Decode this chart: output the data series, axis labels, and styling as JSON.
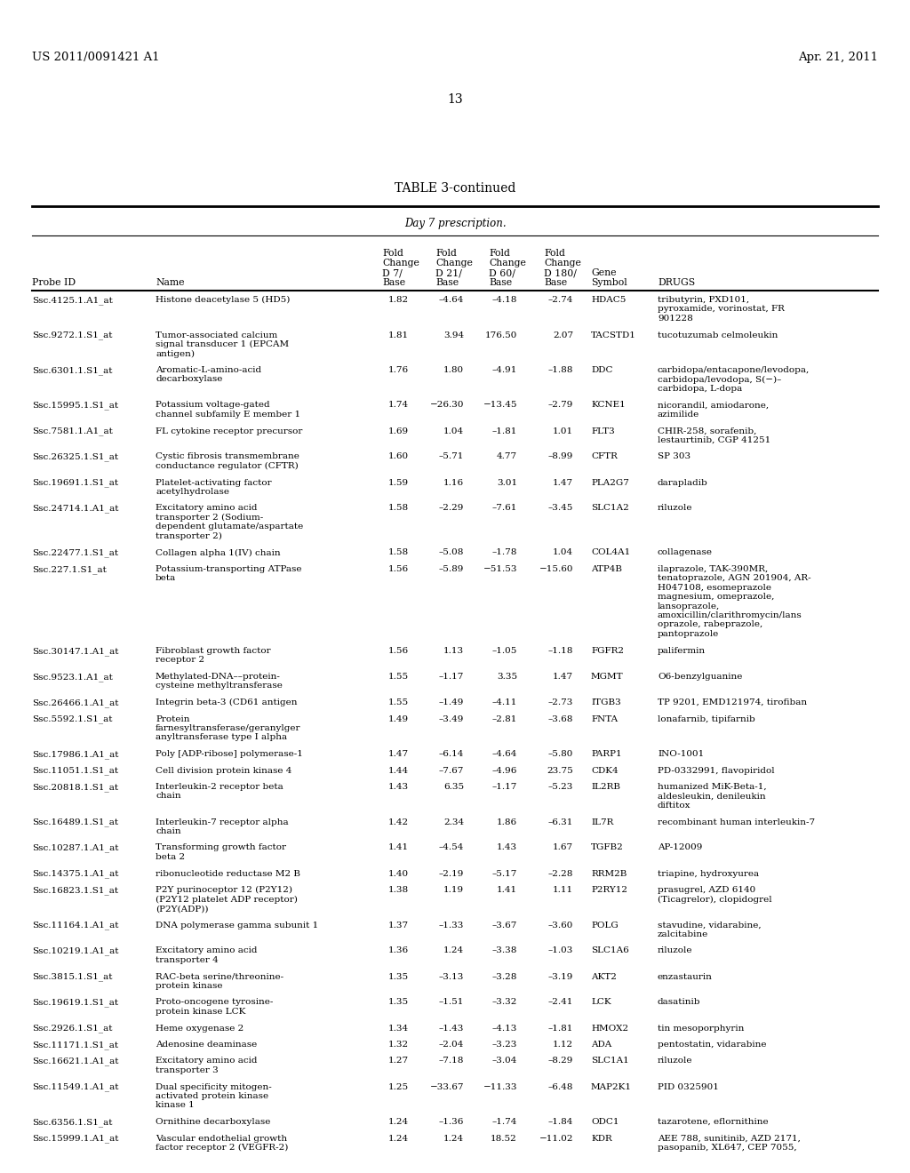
{
  "header_left": "US 2011/0091421 A1",
  "header_right": "Apr. 21, 2011",
  "page_number": "13",
  "table_title": "TABLE 3-continued",
  "subtitle": "Day 7 prescription.",
  "rows": [
    {
      "probe": "Ssc.4125.1.A1_at",
      "name": "Histone deacetylase 5 (HD5)",
      "fc7": "1.82",
      "fc21": "–4.64",
      "fc60": "–4.18",
      "fc180": "–2.74",
      "gene": "HDAC5",
      "drugs": "tributyrin, PXD101,\npyroxamide, vorinostat, FR\n901228"
    },
    {
      "probe": "Ssc.9272.1.S1_at",
      "name": "Tumor-associated calcium\nsignal transducer 1 (EPCAM\nantigen)",
      "fc7": "1.81",
      "fc21": "3.94",
      "fc60": "176.50",
      "fc180": "2.07",
      "gene": "TACSTD1",
      "drugs": "tucotuzumab celmoleukin"
    },
    {
      "probe": "Ssc.6301.1.S1_at",
      "name": "Aromatic-L-amino-acid\ndecarboxylase",
      "fc7": "1.76",
      "fc21": "1.80",
      "fc60": "–4.91",
      "fc180": "–1.88",
      "gene": "DDC",
      "drugs": "carbidopa/entacapone/levodopa,\ncarbidopa/levodopa, S(−)–\ncarbidopa, L-dopa"
    },
    {
      "probe": "Ssc.15995.1.S1_at",
      "name": "Potassium voltage-gated\nchannel subfamily E member 1",
      "fc7": "1.74",
      "fc21": "−26.30",
      "fc60": "−13.45",
      "fc180": "–2.79",
      "gene": "KCNE1",
      "drugs": "nicorandil, amiodarone,\nazimilide"
    },
    {
      "probe": "Ssc.7581.1.A1_at",
      "name": "FL cytokine receptor precursor",
      "fc7": "1.69",
      "fc21": "1.04",
      "fc60": "–1.81",
      "fc180": "1.01",
      "gene": "FLT3",
      "drugs": "CHIR-258, sorafenib,\nlestaurtinib, CGP 41251"
    },
    {
      "probe": "Ssc.26325.1.S1_at",
      "name": "Cystic fibrosis transmembrane\nconductance regulator (CFTR)",
      "fc7": "1.60",
      "fc21": "–5.71",
      "fc60": "4.77",
      "fc180": "–8.99",
      "gene": "CFTR",
      "drugs": "SP 303"
    },
    {
      "probe": "Ssc.19691.1.S1_at",
      "name": "Platelet-activating factor\nacetylhydrolase",
      "fc7": "1.59",
      "fc21": "1.16",
      "fc60": "3.01",
      "fc180": "1.47",
      "gene": "PLA2G7",
      "drugs": "darapladib"
    },
    {
      "probe": "Ssc.24714.1.A1_at",
      "name": "Excitatory amino acid\ntransporter 2 (Sodium-\ndependent glutamate/aspartate\ntransporter 2)",
      "fc7": "1.58",
      "fc21": "–2.29",
      "fc60": "–7.61",
      "fc180": "–3.45",
      "gene": "SLC1A2",
      "drugs": "riluzole"
    },
    {
      "probe": "Ssc.22477.1.S1_at",
      "name": "Collagen alpha 1(IV) chain",
      "fc7": "1.58",
      "fc21": "–5.08",
      "fc60": "–1.78",
      "fc180": "1.04",
      "gene": "COL4A1",
      "drugs": "collagenase"
    },
    {
      "probe": "Ssc.227.1.S1_at",
      "name": "Potassium-transporting ATPase\nbeta",
      "fc7": "1.56",
      "fc21": "–5.89",
      "fc60": "−51.53",
      "fc180": "−15.60",
      "gene": "ATP4B",
      "drugs": "ilaprazole, TAK-390MR,\ntenatoprazole, AGN 201904, AR-\nH047108, esomeprazole\nmagnesium, omeprazole,\nlansoprazole,\namoxicillin/clarithromycin/lans\noprazole, rabeprazole,\npantoprazole"
    },
    {
      "probe": "Ssc.30147.1.A1_at",
      "name": "Fibroblast growth factor\nreceptor 2",
      "fc7": "1.56",
      "fc21": "1.13",
      "fc60": "–1.05",
      "fc180": "–1.18",
      "gene": "FGFR2",
      "drugs": "palifermin"
    },
    {
      "probe": "Ssc.9523.1.A1_at",
      "name": "Methylated-DNA––protein-\ncysteine methyltransferase",
      "fc7": "1.55",
      "fc21": "–1.17",
      "fc60": "3.35",
      "fc180": "1.47",
      "gene": "MGMT",
      "drugs": "O6-benzylguanine"
    },
    {
      "probe": "Ssc.26466.1.A1_at",
      "name": "Integrin beta-3 (CD61 antigen",
      "fc7": "1.55",
      "fc21": "–1.49",
      "fc60": "–4.11",
      "fc180": "–2.73",
      "gene": "ITGB3",
      "drugs": "TP 9201, EMD121974, tirofiban"
    },
    {
      "probe": "Ssc.5592.1.S1_at",
      "name": "Protein\nfarnesyltransferase/geranylger\nanyltransferase type I alpha",
      "fc7": "1.49",
      "fc21": "–3.49",
      "fc60": "–2.81",
      "fc180": "–3.68",
      "gene": "FNTA",
      "drugs": "lonafarnib, tipifarnib"
    },
    {
      "probe": "Ssc.17986.1.A1_at",
      "name": "Poly [ADP-ribose] polymerase-1",
      "fc7": "1.47",
      "fc21": "–6.14",
      "fc60": "–4.64",
      "fc180": "–5.80",
      "gene": "PARP1",
      "drugs": "INO-1001"
    },
    {
      "probe": "Ssc.11051.1.S1_at",
      "name": "Cell division protein kinase 4",
      "fc7": "1.44",
      "fc21": "–7.67",
      "fc60": "–4.96",
      "fc180": "23.75",
      "gene": "CDK4",
      "drugs": "PD-0332991, flavopiridol"
    },
    {
      "probe": "Ssc.20818.1.S1_at",
      "name": "Interleukin-2 receptor beta\nchain",
      "fc7": "1.43",
      "fc21": "6.35",
      "fc60": "–1.17",
      "fc180": "–5.23",
      "gene": "IL2RB",
      "drugs": "humanized MiK-Beta-1,\naldesleukin, denileukin\ndiftitox"
    },
    {
      "probe": "Ssc.16489.1.S1_at",
      "name": "Interleukin-7 receptor alpha\nchain",
      "fc7": "1.42",
      "fc21": "2.34",
      "fc60": "1.86",
      "fc180": "–6.31",
      "gene": "IL7R",
      "drugs": "recombinant human interleukin-7"
    },
    {
      "probe": "Ssc.10287.1.A1_at",
      "name": "Transforming growth factor\nbeta 2",
      "fc7": "1.41",
      "fc21": "–4.54",
      "fc60": "1.43",
      "fc180": "1.67",
      "gene": "TGFB2",
      "drugs": "AP-12009"
    },
    {
      "probe": "Ssc.14375.1.A1_at",
      "name": "ribonucleotide reductase M2 B",
      "fc7": "1.40",
      "fc21": "–2.19",
      "fc60": "–5.17",
      "fc180": "–2.28",
      "gene": "RRM2B",
      "drugs": "triapine, hydroxyurea"
    },
    {
      "probe": "Ssc.16823.1.S1_at",
      "name": "P2Y purinoceptor 12 (P2Y12)\n(P2Y12 platelet ADP receptor)\n(P2Y(ADP))",
      "fc7": "1.38",
      "fc21": "1.19",
      "fc60": "1.41",
      "fc180": "1.11",
      "gene": "P2RY12",
      "drugs": "prasugrel, AZD 6140\n(Ticagrelor), clopidogrel"
    },
    {
      "probe": "Ssc.11164.1.A1_at",
      "name": "DNA polymerase gamma subunit 1",
      "fc7": "1.37",
      "fc21": "–1.33",
      "fc60": "–3.67",
      "fc180": "–3.60",
      "gene": "POLG",
      "drugs": "stavudine, vidarabine,\nzalcitabine"
    },
    {
      "probe": "Ssc.10219.1.A1_at",
      "name": "Excitatory amino acid\ntransporter 4",
      "fc7": "1.36",
      "fc21": "1.24",
      "fc60": "–3.38",
      "fc180": "–1.03",
      "gene": "SLC1A6",
      "drugs": "riluzole"
    },
    {
      "probe": "Ssc.3815.1.S1_at",
      "name": "RAC-beta serine/threonine-\nprotein kinase",
      "fc7": "1.35",
      "fc21": "–3.13",
      "fc60": "–3.28",
      "fc180": "–3.19",
      "gene": "AKT2",
      "drugs": "enzastaurin"
    },
    {
      "probe": "Ssc.19619.1.S1_at",
      "name": "Proto-oncogene tyrosine-\nprotein kinase LCK",
      "fc7": "1.35",
      "fc21": "–1.51",
      "fc60": "–3.32",
      "fc180": "–2.41",
      "gene": "LCK",
      "drugs": "dasatinib"
    },
    {
      "probe": "Ssc.2926.1.S1_at",
      "name": "Heme oxygenase 2",
      "fc7": "1.34",
      "fc21": "–1.43",
      "fc60": "–4.13",
      "fc180": "–1.81",
      "gene": "HMOX2",
      "drugs": "tin mesoporphyrin"
    },
    {
      "probe": "Ssc.11171.1.S1_at",
      "name": "Adenosine deaminase",
      "fc7": "1.32",
      "fc21": "–2.04",
      "fc60": "–3.23",
      "fc180": "1.12",
      "gene": "ADA",
      "drugs": "pentostatin, vidarabine"
    },
    {
      "probe": "Ssc.16621.1.A1_at",
      "name": "Excitatory amino acid\ntransporter 3",
      "fc7": "1.27",
      "fc21": "–7.18",
      "fc60": "–3.04",
      "fc180": "–8.29",
      "gene": "SLC1A1",
      "drugs": "riluzole"
    },
    {
      "probe": "Ssc.11549.1.A1_at",
      "name": "Dual specificity mitogen-\nactivated protein kinase\nkinase 1",
      "fc7": "1.25",
      "fc21": "−33.67",
      "fc60": "−11.33",
      "fc180": "–6.48",
      "gene": "MAP2K1",
      "drugs": "PID 0325901"
    },
    {
      "probe": "Ssc.6356.1.S1_at",
      "name": "Ornithine decarboxylase",
      "fc7": "1.24",
      "fc21": "–1.36",
      "fc60": "–1.74",
      "fc180": "–1.84",
      "gene": "ODC1",
      "drugs": "tazarotene, eflornithine"
    },
    {
      "probe": "Ssc.15999.1.A1_at",
      "name": "Vascular endothelial growth\nfactor receptor 2 (VEGFR-2)",
      "fc7": "1.24",
      "fc21": "1.24",
      "fc60": "18.52",
      "fc180": "−11.02",
      "gene": "KDR",
      "drugs": "AEE 788, sunitinib, AZD 2171,\npasopanib, XL647, CEP 7055,"
    }
  ]
}
